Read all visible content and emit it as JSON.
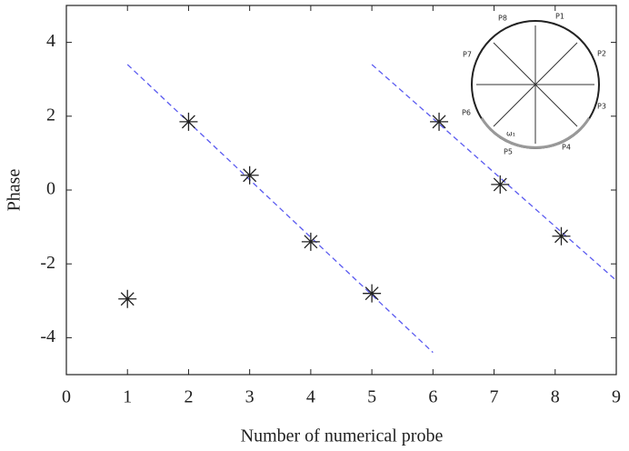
{
  "chart_data": {
    "type": "scatter",
    "x_label": "Number of numerical probe",
    "y_label": "Phase",
    "x": [
      1,
      2,
      3,
      4,
      5,
      6.1,
      7.1,
      8.1
    ],
    "values": [
      -2.95,
      1.85,
      0.4,
      -1.4,
      -2.8,
      1.85,
      0.15,
      -1.25
    ],
    "color": "#222222",
    "marker": "asterisk",
    "fit_lines": [
      {
        "x": [
          1,
          6
        ],
        "y": [
          3.4,
          -4.4
        ],
        "color": "#5a5af0"
      },
      {
        "x": [
          5,
          9
        ],
        "y": [
          3.4,
          -2.45
        ],
        "color": "#5a5af0"
      }
    ],
    "xlim": [
      0,
      9
    ],
    "xticks": [
      0,
      1,
      2,
      3,
      4,
      5,
      6,
      7,
      8,
      9
    ],
    "ylim": [
      -5,
      5
    ],
    "yticks": [
      -4,
      -2,
      0,
      2,
      4
    ],
    "inset": {
      "probes": [
        "P1",
        "P2",
        "P3",
        "P4",
        "P5",
        "P6",
        "P7",
        "P8"
      ],
      "annotation": "ω₁"
    }
  }
}
